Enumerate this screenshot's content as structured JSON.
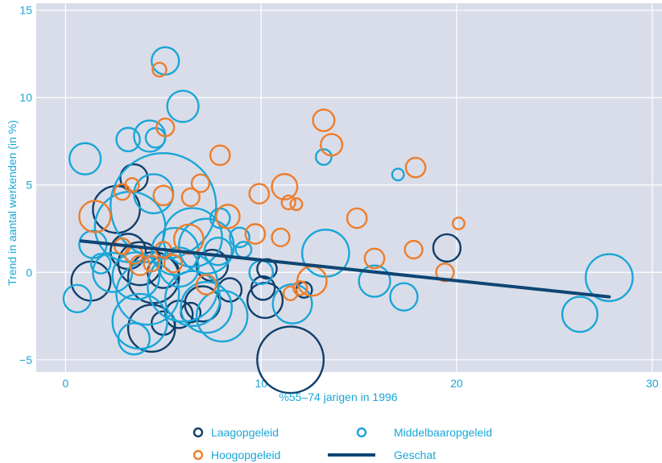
{
  "chart_data": {
    "type": "scatter",
    "xlabel": "%55–74 jarigen in 1996",
    "ylabel": "Trend in aantal werkenden (in %)",
    "xlim": [
      -1.5,
      30.5
    ],
    "ylim": [
      -5.7,
      15.4
    ],
    "x_ticks": [
      0,
      10,
      20,
      30
    ],
    "y_ticks": [
      15,
      10,
      5,
      0,
      -5
    ],
    "x_tick_labels": [
      "0",
      "10",
      "20",
      "30"
    ],
    "y_tick_labels": [
      "15",
      "10",
      "5",
      "0",
      "−5"
    ],
    "grid": true,
    "legend_position": "bottom",
    "colors": {
      "background": "#d9dde9",
      "grid": "#ffffff",
      "text": "#1aa6d8",
      "laag": "#103f6b",
      "middel": "#1aa6d8",
      "hoog": "#ee7d2b",
      "geschat": "#0e4574"
    },
    "legend": [
      {
        "label": "Laagopgeleid",
        "series": "laag",
        "kind": "circle"
      },
      {
        "label": "Middelbaaropgeleid",
        "series": "middel",
        "kind": "circle"
      },
      {
        "label": "Hoogopgeleid",
        "series": "hoog",
        "kind": "circle"
      },
      {
        "label": "Geschat",
        "series": "geschat",
        "kind": "line"
      }
    ],
    "series": [
      {
        "name": "Laagopgeleid",
        "key": "laag",
        "points": [
          {
            "x": 3.5,
            "y": 5.4,
            "r": 0.7
          },
          {
            "x": 2.6,
            "y": 3.6,
            "r": 1.2
          },
          {
            "x": 1.3,
            "y": -0.5,
            "r": 1.0
          },
          {
            "x": 3.2,
            "y": 1.2,
            "r": 0.9
          },
          {
            "x": 3.8,
            "y": 0.5,
            "r": 1.1
          },
          {
            "x": 4.5,
            "y": -0.3,
            "r": 1.3
          },
          {
            "x": 5.0,
            "y": 0.0,
            "r": 0.8
          },
          {
            "x": 4.4,
            "y": -3.2,
            "r": 1.2
          },
          {
            "x": 5.0,
            "y": -2.9,
            "r": 0.6
          },
          {
            "x": 5.8,
            "y": -2.4,
            "r": 0.7
          },
          {
            "x": 6.4,
            "y": -2.3,
            "r": 0.5
          },
          {
            "x": 7.0,
            "y": -1.8,
            "r": 0.9
          },
          {
            "x": 7.5,
            "y": 0.4,
            "r": 0.8
          },
          {
            "x": 8.4,
            "y": -1.0,
            "r": 0.6
          },
          {
            "x": 10.2,
            "y": -1.6,
            "r": 0.9
          },
          {
            "x": 10.1,
            "y": -0.9,
            "r": 0.6
          },
          {
            "x": 10.3,
            "y": 0.2,
            "r": 0.5
          },
          {
            "x": 11.5,
            "y": -5.0,
            "r": 1.7
          },
          {
            "x": 12.2,
            "y": -1.0,
            "r": 0.4
          },
          {
            "x": 19.5,
            "y": 1.4,
            "r": 0.7
          }
        ]
      },
      {
        "name": "Middelbaaropgeleid",
        "key": "middel",
        "points": [
          {
            "x": 5.1,
            "y": 12.1,
            "r": 0.7
          },
          {
            "x": 6.0,
            "y": 9.5,
            "r": 0.8
          },
          {
            "x": 1.0,
            "y": 6.5,
            "r": 0.8
          },
          {
            "x": 3.2,
            "y": 7.6,
            "r": 0.6
          },
          {
            "x": 4.3,
            "y": 7.8,
            "r": 0.8
          },
          {
            "x": 4.6,
            "y": 7.7,
            "r": 0.5
          },
          {
            "x": 5.0,
            "y": 3.8,
            "r": 2.7
          },
          {
            "x": 3.3,
            "y": 2.6,
            "r": 1.8
          },
          {
            "x": 6.5,
            "y": 2.0,
            "r": 1.5
          },
          {
            "x": 7.2,
            "y": 1.5,
            "r": 1.4
          },
          {
            "x": 5.6,
            "y": 1.2,
            "r": 1.2
          },
          {
            "x": 4.5,
            "y": 4.5,
            "r": 1.0
          },
          {
            "x": 1.4,
            "y": 1.6,
            "r": 0.7
          },
          {
            "x": 1.8,
            "y": 0.5,
            "r": 0.5
          },
          {
            "x": 2.4,
            "y": 0.0,
            "r": 1.0
          },
          {
            "x": 3.6,
            "y": -0.2,
            "r": 1.2
          },
          {
            "x": 4.2,
            "y": -1.2,
            "r": 1.6
          },
          {
            "x": 6.0,
            "y": -0.8,
            "r": 1.8
          },
          {
            "x": 6.5,
            "y": -1.5,
            "r": 1.4
          },
          {
            "x": 7.2,
            "y": -2.0,
            "r": 1.3
          },
          {
            "x": 8.0,
            "y": -2.5,
            "r": 1.3
          },
          {
            "x": 3.8,
            "y": -2.8,
            "r": 1.4
          },
          {
            "x": 3.5,
            "y": -3.8,
            "r": 0.8
          },
          {
            "x": 5.8,
            "y": 0.3,
            "r": 1.0
          },
          {
            "x": 7.8,
            "y": 1.2,
            "r": 0.7
          },
          {
            "x": 7.9,
            "y": 3.1,
            "r": 0.5
          },
          {
            "x": 8.9,
            "y": 2.0,
            "r": 0.5
          },
          {
            "x": 9.1,
            "y": 1.3,
            "r": 0.4
          },
          {
            "x": 10.0,
            "y": 0.0,
            "r": 0.6
          },
          {
            "x": 11.6,
            "y": -1.8,
            "r": 1.0
          },
          {
            "x": 0.6,
            "y": -1.5,
            "r": 0.7
          },
          {
            "x": 13.3,
            "y": 1.1,
            "r": 1.2
          },
          {
            "x": 13.2,
            "y": 6.6,
            "r": 0.4
          },
          {
            "x": 15.8,
            "y": -0.5,
            "r": 0.8
          },
          {
            "x": 17.0,
            "y": 5.6,
            "r": 0.3
          },
          {
            "x": 17.3,
            "y": -1.4,
            "r": 0.7
          },
          {
            "x": 26.3,
            "y": -2.4,
            "r": 0.9
          },
          {
            "x": 27.8,
            "y": -0.3,
            "r": 1.2
          }
        ]
      },
      {
        "name": "Hoogopgeleid",
        "key": "hoog",
        "points": [
          {
            "x": 4.8,
            "y": 11.6,
            "r": 0.35
          },
          {
            "x": 5.1,
            "y": 8.3,
            "r": 0.45
          },
          {
            "x": 13.2,
            "y": 8.7,
            "r": 0.55
          },
          {
            "x": 13.6,
            "y": 7.3,
            "r": 0.55
          },
          {
            "x": 7.9,
            "y": 6.7,
            "r": 0.5
          },
          {
            "x": 17.9,
            "y": 6.0,
            "r": 0.5
          },
          {
            "x": 6.9,
            "y": 5.1,
            "r": 0.45
          },
          {
            "x": 11.2,
            "y": 4.9,
            "r": 0.65
          },
          {
            "x": 9.9,
            "y": 4.5,
            "r": 0.5
          },
          {
            "x": 5.0,
            "y": 4.4,
            "r": 0.5
          },
          {
            "x": 3.4,
            "y": 5.0,
            "r": 0.35
          },
          {
            "x": 2.9,
            "y": 4.6,
            "r": 0.4
          },
          {
            "x": 6.4,
            "y": 4.3,
            "r": 0.45
          },
          {
            "x": 11.4,
            "y": 4.0,
            "r": 0.35
          },
          {
            "x": 11.8,
            "y": 3.9,
            "r": 0.3
          },
          {
            "x": 1.5,
            "y": 3.2,
            "r": 0.8
          },
          {
            "x": 8.3,
            "y": 3.2,
            "r": 0.6
          },
          {
            "x": 14.9,
            "y": 3.1,
            "r": 0.5
          },
          {
            "x": 20.1,
            "y": 2.8,
            "r": 0.3
          },
          {
            "x": 9.7,
            "y": 2.2,
            "r": 0.5
          },
          {
            "x": 11.0,
            "y": 2.0,
            "r": 0.45
          },
          {
            "x": 6.3,
            "y": 1.9,
            "r": 0.75
          },
          {
            "x": 2.9,
            "y": 1.5,
            "r": 0.4
          },
          {
            "x": 5.0,
            "y": 1.3,
            "r": 0.4
          },
          {
            "x": 17.8,
            "y": 1.3,
            "r": 0.45
          },
          {
            "x": 3.5,
            "y": 1.0,
            "r": 0.45
          },
          {
            "x": 15.8,
            "y": 0.8,
            "r": 0.5
          },
          {
            "x": 3.8,
            "y": 0.4,
            "r": 0.5
          },
          {
            "x": 4.4,
            "y": 0.5,
            "r": 0.4
          },
          {
            "x": 5.5,
            "y": 0.5,
            "r": 0.45
          },
          {
            "x": 19.4,
            "y": 0.0,
            "r": 0.45
          },
          {
            "x": 12.6,
            "y": -0.5,
            "r": 0.75
          },
          {
            "x": 7.2,
            "y": -0.7,
            "r": 0.5
          },
          {
            "x": 12.0,
            "y": -0.9,
            "r": 0.35
          },
          {
            "x": 11.5,
            "y": -1.2,
            "r": 0.35
          }
        ]
      }
    ],
    "geschat": {
      "x": [
        0.8,
        27.8
      ],
      "y": [
        1.8,
        -1.4
      ]
    }
  }
}
